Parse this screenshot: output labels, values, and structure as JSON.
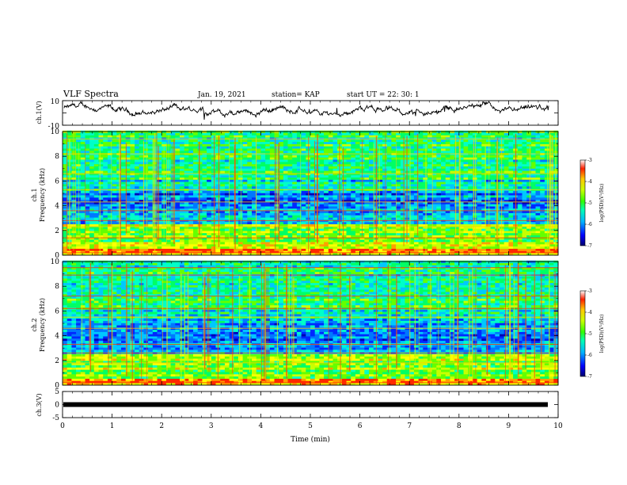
{
  "header": {
    "title": "VLF Spectra",
    "date": "Jan. 19, 2021",
    "station": "station= KAP",
    "start": "start UT =  22: 30: 1"
  },
  "chart_data": [
    {
      "name": "ch1-waveform",
      "type": "line",
      "ylabel": "ch.1(V)",
      "xlim": [
        0,
        10
      ],
      "ylim": [
        -10,
        10
      ],
      "yticklabels": [
        "10",
        "-10"
      ]
    },
    {
      "name": "ch1-spectrogram",
      "type": "heatmap",
      "ylabel": "ch.1\nFrequency (kHz)",
      "xlim": [
        0,
        10
      ],
      "ylim": [
        0,
        10
      ],
      "yticklabels": [
        "0",
        "2",
        "4",
        "6",
        "8",
        "10"
      ],
      "colorbar": {
        "label": "log(PSD)(V²/Hz)",
        "range": [
          -7,
          -3
        ],
        "ticklabels": [
          "-3",
          "-4",
          "-5",
          "-6",
          "-7"
        ]
      }
    },
    {
      "name": "ch2-spectrogram",
      "type": "heatmap",
      "ylabel": "ch.2\nFrequency (kHz)",
      "xlim": [
        0,
        10
      ],
      "ylim": [
        0,
        10
      ],
      "yticklabels": [
        "0",
        "2",
        "4",
        "6",
        "8",
        "10"
      ],
      "colorbar": {
        "label": "log(PSD)(V²/Hz)",
        "range": [
          -7,
          -3
        ],
        "ticklabels": [
          "-3",
          "-4",
          "-5",
          "-6",
          "-7"
        ]
      }
    },
    {
      "name": "ch3-waveform",
      "type": "line",
      "ylabel": "ch.3(V)",
      "xlim": [
        0,
        10
      ],
      "ylim": [
        -5,
        5
      ],
      "yticklabels": [
        "5",
        "0",
        "-5"
      ],
      "constant_value": 0
    }
  ],
  "xaxis": {
    "label": "Time (min)",
    "ticklabels": [
      "0",
      "1",
      "2",
      "3",
      "4",
      "5",
      "6",
      "7",
      "8",
      "9",
      "10"
    ]
  },
  "colors": {
    "waveform": "#000000",
    "spectrum_palette": [
      "#0000c0",
      "#0050ff",
      "#00c8ff",
      "#00ff96",
      "#64ff00",
      "#ffff00",
      "#ff9600",
      "#ff0000"
    ]
  }
}
